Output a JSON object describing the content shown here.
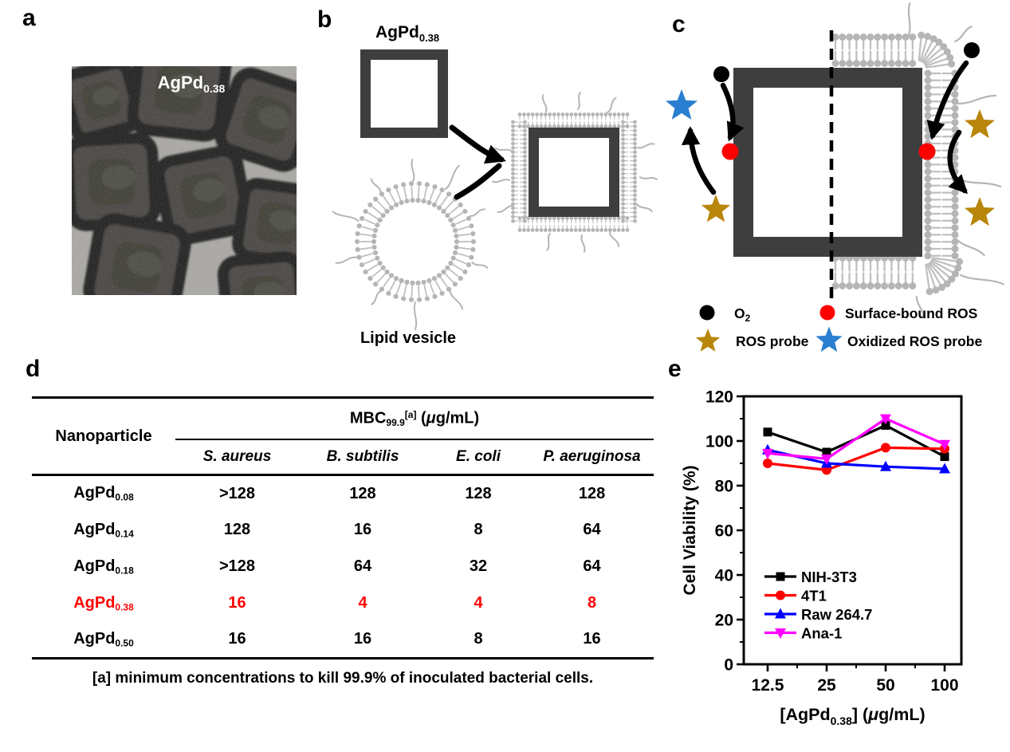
{
  "panels": {
    "a": "a",
    "b": "b",
    "c": "c",
    "d": "d",
    "e": "e"
  },
  "colors": {
    "frame_gray": "#3e3e3e",
    "lipid_gray": "#b5b5b5",
    "gold": "#b8860b",
    "star_blue": "#2b7fd0",
    "red": "#ff0000",
    "magenta": "#ff00ff",
    "line_blue": "#0000ff",
    "black": "#000000",
    "highlight": "#ff0000"
  },
  "panel_a": {
    "image_label": {
      "base": "AgPd",
      "sub": "0.38"
    }
  },
  "panel_b": {
    "nanocage_label": {
      "base": "AgPd",
      "sub": "0.38"
    },
    "vesicle_label": "Lipid vesicle"
  },
  "panel_c": {
    "legend": [
      {
        "symbol": "black-dot",
        "label_base": "O",
        "label_sub": "2"
      },
      {
        "symbol": "red-dot",
        "label": "Surface-bound ROS"
      },
      {
        "symbol": "gold-star",
        "label": "ROS probe"
      },
      {
        "symbol": "blue-star",
        "label": "Oxidized ROS probe"
      }
    ]
  },
  "panel_d": {
    "table": {
      "col1_header": "Nanoparticle",
      "group_header": {
        "base": "MBC",
        "sub": "99.9",
        "sup": "[a]",
        "paren_open": " (",
        "mu": "μ",
        "rest": "g/mL)"
      },
      "species": [
        "S. aureus",
        "B. subtilis",
        "E. coli",
        "P. aeruginosa"
      ],
      "rows": [
        {
          "name_base": "AgPd",
          "name_sub": "0.08",
          "values": [
            ">128",
            "128",
            "128",
            "128"
          ],
          "highlight": false
        },
        {
          "name_base": "AgPd",
          "name_sub": "0.14",
          "values": [
            "128",
            "16",
            "8",
            "64"
          ],
          "highlight": false
        },
        {
          "name_base": "AgPd",
          "name_sub": "0.18",
          "values": [
            ">128",
            "64",
            "32",
            "64"
          ],
          "highlight": false
        },
        {
          "name_base": "AgPd",
          "name_sub": "0.38",
          "values": [
            "16",
            "4",
            "4",
            "8"
          ],
          "highlight": true
        },
        {
          "name_base": "AgPd",
          "name_sub": "0.50",
          "values": [
            "16",
            "16",
            "8",
            "16"
          ],
          "highlight": false
        }
      ],
      "footnote": "[a] minimum concentrations to kill 99.9% of inoculated bacterial cells."
    }
  },
  "chart_data": {
    "type": "line",
    "x": [
      12.5,
      25,
      50,
      100
    ],
    "x_scale": "log",
    "series": [
      {
        "name": "NIH-3T3",
        "color": "#000000",
        "marker": "square",
        "values": [
          104,
          95,
          107,
          93
        ]
      },
      {
        "name": "4T1",
        "color": "#ff0000",
        "marker": "circle",
        "values": [
          90,
          87,
          97,
          96.5
        ]
      },
      {
        "name": "Raw 264.7",
        "color": "#0000ff",
        "marker": "triangle-up",
        "values": [
          96,
          90,
          88.5,
          87.5
        ]
      },
      {
        "name": "Ana-1",
        "color": "#ff00ff",
        "marker": "triangle-down",
        "values": [
          94.5,
          92,
          110,
          98.5
        ]
      }
    ],
    "title": "",
    "xlabel": "[AgPd0.38] (μg/mL)",
    "xlabel_parts": {
      "pre": "[AgPd",
      "sub": "0.38",
      "mid": "] (",
      "mu": "μ",
      "post": "g/mL)"
    },
    "ylabel": "Cell Viability (%)",
    "ylim": [
      0,
      120
    ],
    "yticks": [
      0,
      20,
      40,
      60,
      80,
      100,
      120
    ],
    "xticks": [
      12.5,
      25,
      50,
      100
    ],
    "grid": false,
    "legend_position": "inside-lower-left"
  }
}
